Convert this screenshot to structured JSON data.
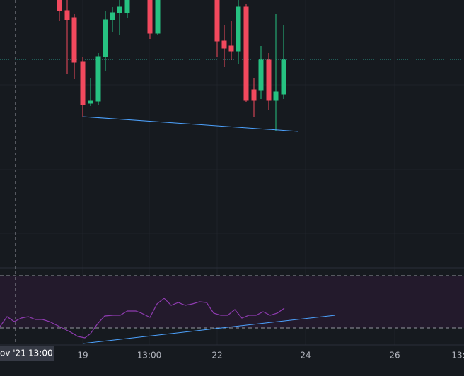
{
  "time_axis": {
    "labels": [
      "19",
      "13:00",
      "22",
      "24",
      "26",
      "13:"
    ]
  },
  "crosshair": {
    "date": "ov '21",
    "time": "13:00"
  }
}
